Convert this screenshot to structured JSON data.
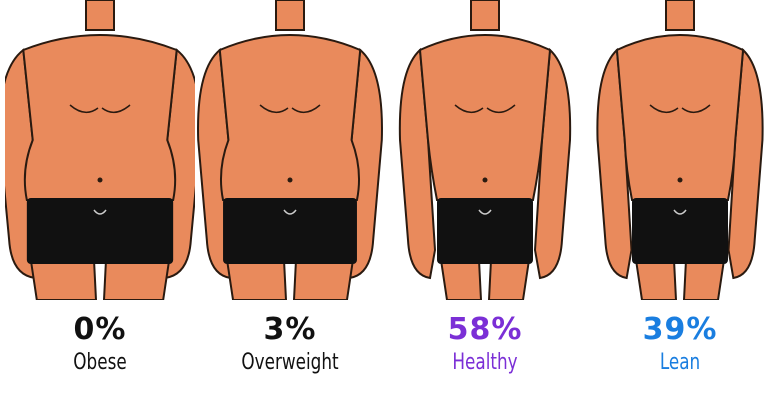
{
  "categories": [
    {
      "percent": "0%",
      "label": "Obese",
      "color": "#111111",
      "build": "obese"
    },
    {
      "percent": "3%",
      "label": "Overweight",
      "color": "#111111",
      "build": "overweight"
    },
    {
      "percent": "58%",
      "label": "Healthy",
      "color": "#7b2fd6",
      "build": "healthy"
    },
    {
      "percent": "39%",
      "label": "Lean",
      "color": "#1a7ee0",
      "build": "lean"
    }
  ],
  "colors": {
    "skin": "#e98a5c",
    "shorts": "#111111",
    "outline": "#2a1a10"
  }
}
